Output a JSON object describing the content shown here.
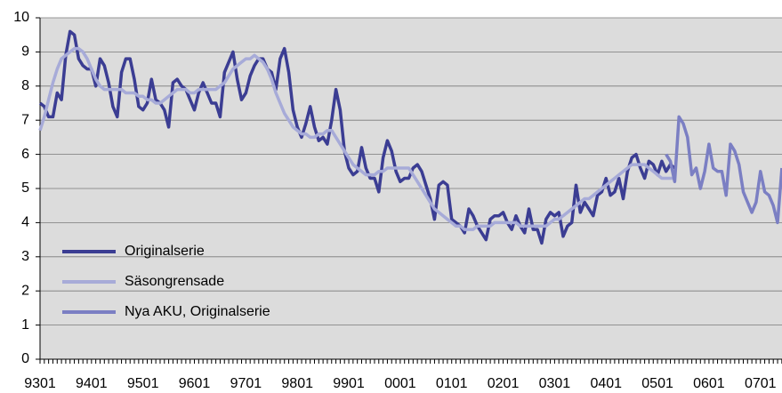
{
  "chart_data": {
    "type": "line",
    "categories": [
      "9301",
      null,
      null,
      null,
      null,
      null,
      null,
      null,
      null,
      null,
      null,
      null,
      "9401",
      null,
      null,
      null,
      null,
      null,
      null,
      null,
      null,
      null,
      null,
      null,
      "9501",
      null,
      null,
      null,
      null,
      null,
      null,
      null,
      null,
      null,
      null,
      null,
      "9601",
      null,
      null,
      null,
      null,
      null,
      null,
      null,
      null,
      null,
      null,
      null,
      "9701",
      null,
      null,
      null,
      null,
      null,
      null,
      null,
      null,
      null,
      null,
      null,
      "9801",
      null,
      null,
      null,
      null,
      null,
      null,
      null,
      null,
      null,
      null,
      null,
      "9901",
      null,
      null,
      null,
      null,
      null,
      null,
      null,
      null,
      null,
      null,
      null,
      "0001",
      null,
      null,
      null,
      null,
      null,
      null,
      null,
      null,
      null,
      null,
      null,
      "0101",
      null,
      null,
      null,
      null,
      null,
      null,
      null,
      null,
      null,
      null,
      null,
      "0201",
      null,
      null,
      null,
      null,
      null,
      null,
      null,
      null,
      null,
      null,
      null,
      "0301",
      null,
      null,
      null,
      null,
      null,
      null,
      null,
      null,
      null,
      null,
      null,
      "0401",
      null,
      null,
      null,
      null,
      null,
      null,
      null,
      null,
      null,
      null,
      null,
      "0501",
      null,
      null,
      null,
      null,
      null,
      null,
      null,
      null,
      null,
      null,
      null,
      "0601",
      null,
      null,
      null,
      null,
      null,
      null,
      null,
      null,
      null,
      null,
      null,
      "0701",
      null,
      null,
      null,
      null,
      null
    ],
    "series": [
      {
        "name": "Originalserie",
        "color": "#3b3d93",
        "values": [
          7.5,
          7.4,
          7.1,
          7.1,
          7.8,
          7.6,
          8.9,
          9.6,
          9.5,
          8.8,
          8.6,
          8.5,
          8.5,
          8.0,
          8.8,
          8.6,
          8.1,
          7.4,
          7.1,
          8.4,
          8.8,
          8.8,
          8.2,
          7.4,
          7.3,
          7.5,
          8.2,
          7.6,
          7.5,
          7.3,
          6.8,
          8.1,
          8.2,
          8.0,
          7.9,
          7.6,
          7.3,
          7.8,
          8.1,
          7.8,
          7.5,
          7.5,
          7.1,
          8.4,
          8.7,
          9.0,
          8.2,
          7.6,
          7.8,
          8.3,
          8.6,
          8.8,
          8.8,
          8.5,
          8.4,
          7.9,
          8.8,
          9.1,
          8.4,
          7.3,
          6.8,
          6.5,
          6.9,
          7.4,
          6.8,
          6.4,
          6.5,
          6.3,
          7.0,
          7.9,
          7.3,
          6.1,
          5.6,
          5.4,
          5.5,
          6.2,
          5.6,
          5.3,
          5.3,
          4.9,
          5.9,
          6.4,
          6.1,
          5.5,
          5.2,
          5.3,
          5.3,
          5.6,
          5.7,
          5.5,
          5.1,
          4.7,
          4.1,
          5.1,
          5.2,
          5.1,
          4.1,
          4.0,
          3.9,
          3.7,
          4.4,
          4.2,
          3.9,
          3.7,
          3.5,
          4.1,
          4.2,
          4.2,
          4.3,
          4.0,
          3.8,
          4.2,
          3.9,
          3.7,
          4.4,
          3.8,
          3.8,
          3.4,
          4.1,
          4.3,
          4.2,
          4.3,
          3.6,
          3.9,
          4.0,
          5.1,
          4.3,
          4.6,
          4.4,
          4.2,
          4.8,
          4.9,
          5.3,
          4.8,
          4.9,
          5.3,
          4.7,
          5.5,
          5.9,
          6.0,
          5.6,
          5.3,
          5.8,
          5.7,
          5.4,
          5.8,
          5.5,
          5.7,
          5.6,
          null,
          null,
          null,
          null,
          null,
          null,
          null,
          null,
          null,
          null,
          null,
          null,
          null,
          null,
          null,
          null,
          null,
          null,
          null,
          null,
          null,
          null,
          null,
          null,
          null
        ]
      },
      {
        "name": "Säsongrensade",
        "color": "#a7abd8",
        "values": [
          6.7,
          7.1,
          7.6,
          8.1,
          8.5,
          8.8,
          8.9,
          9.0,
          9.1,
          9.1,
          9.0,
          8.8,
          8.5,
          8.2,
          8.0,
          7.9,
          7.9,
          7.9,
          7.9,
          7.9,
          7.8,
          7.8,
          7.8,
          7.7,
          7.7,
          7.6,
          7.6,
          7.5,
          7.5,
          7.6,
          7.7,
          7.8,
          7.9,
          7.9,
          7.9,
          7.8,
          7.8,
          7.9,
          7.9,
          7.9,
          7.9,
          7.9,
          8.0,
          8.1,
          8.3,
          8.5,
          8.6,
          8.7,
          8.8,
          8.8,
          8.9,
          8.8,
          8.7,
          8.5,
          8.2,
          7.8,
          7.5,
          7.2,
          7.0,
          6.8,
          6.7,
          6.6,
          6.6,
          6.5,
          6.5,
          6.6,
          6.6,
          6.7,
          6.7,
          6.5,
          6.3,
          6.1,
          5.9,
          5.7,
          5.6,
          5.5,
          5.4,
          5.4,
          5.4,
          5.5,
          5.5,
          5.6,
          5.6,
          5.6,
          5.6,
          5.6,
          5.6,
          5.4,
          5.2,
          5.0,
          4.8,
          4.6,
          4.4,
          4.3,
          4.2,
          4.1,
          4.0,
          3.9,
          3.9,
          3.8,
          3.8,
          3.8,
          3.9,
          3.9,
          3.9,
          3.9,
          4.0,
          4.0,
          4.0,
          4.0,
          4.0,
          4.0,
          3.9,
          3.9,
          3.9,
          3.9,
          3.9,
          3.9,
          3.9,
          4.0,
          4.1,
          4.1,
          4.2,
          4.3,
          4.4,
          4.5,
          4.6,
          4.7,
          4.7,
          4.8,
          4.9,
          5.0,
          5.1,
          5.2,
          5.3,
          5.4,
          5.5,
          5.6,
          5.7,
          5.7,
          5.7,
          5.7,
          5.6,
          5.5,
          5.4,
          5.3,
          5.3,
          5.3,
          5.3,
          null,
          null,
          null,
          null,
          null,
          null,
          null,
          null,
          null,
          null,
          null,
          null,
          null,
          null,
          null,
          null,
          null,
          null,
          null,
          null,
          null,
          null,
          null,
          null,
          null
        ]
      },
      {
        "name": "Nya AKU, Originalserie",
        "color": "#7b7fc3",
        "values": [
          null,
          null,
          null,
          null,
          null,
          null,
          null,
          null,
          null,
          null,
          null,
          null,
          null,
          null,
          null,
          null,
          null,
          null,
          null,
          null,
          null,
          null,
          null,
          null,
          null,
          null,
          null,
          null,
          null,
          null,
          null,
          null,
          null,
          null,
          null,
          null,
          null,
          null,
          null,
          null,
          null,
          null,
          null,
          null,
          null,
          null,
          null,
          null,
          null,
          null,
          null,
          null,
          null,
          null,
          null,
          null,
          null,
          null,
          null,
          null,
          null,
          null,
          null,
          null,
          null,
          null,
          null,
          null,
          null,
          null,
          null,
          null,
          null,
          null,
          null,
          null,
          null,
          null,
          null,
          null,
          null,
          null,
          null,
          null,
          null,
          null,
          null,
          null,
          null,
          null,
          null,
          null,
          null,
          null,
          null,
          null,
          null,
          null,
          null,
          null,
          null,
          null,
          null,
          null,
          null,
          null,
          null,
          null,
          null,
          null,
          null,
          null,
          null,
          null,
          null,
          null,
          null,
          null,
          null,
          null,
          null,
          null,
          null,
          null,
          null,
          null,
          null,
          null,
          null,
          null,
          null,
          null,
          null,
          null,
          null,
          null,
          null,
          null,
          null,
          null,
          null,
          null,
          null,
          null,
          null,
          null,
          6.0,
          5.8,
          5.2,
          7.1,
          6.9,
          6.5,
          5.4,
          5.6,
          5.0,
          5.5,
          6.3,
          5.6,
          5.5,
          5.5,
          4.8,
          6.3,
          6.1,
          5.7,
          4.9,
          4.6,
          4.3,
          4.6,
          5.5,
          4.9,
          4.8,
          4.5,
          4.0,
          5.6
        ]
      }
    ],
    "ylim": [
      0,
      10
    ],
    "yticks": [
      0,
      1,
      2,
      3,
      4,
      5,
      6,
      7,
      8,
      9,
      10
    ],
    "grid": true,
    "legend": "lower left"
  }
}
